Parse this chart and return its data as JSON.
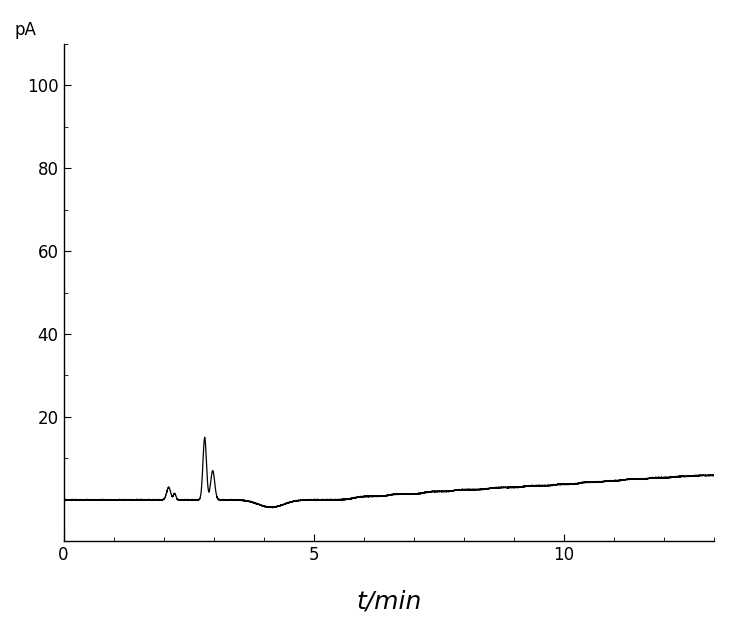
{
  "title": "",
  "xlabel": "t/min",
  "ylabel": "pA",
  "xlim": [
    0,
    13
  ],
  "ylim": [
    -10,
    110
  ],
  "yticks": [
    20,
    40,
    60,
    80,
    100
  ],
  "xticks": [
    0,
    5,
    10
  ],
  "background_color": "#ffffff",
  "line_color": "#000000",
  "line_width": 0.9,
  "xlabel_fontsize": 18,
  "ylabel_fontsize": 12,
  "tick_fontsize": 12,
  "xlabel_style": "italic"
}
